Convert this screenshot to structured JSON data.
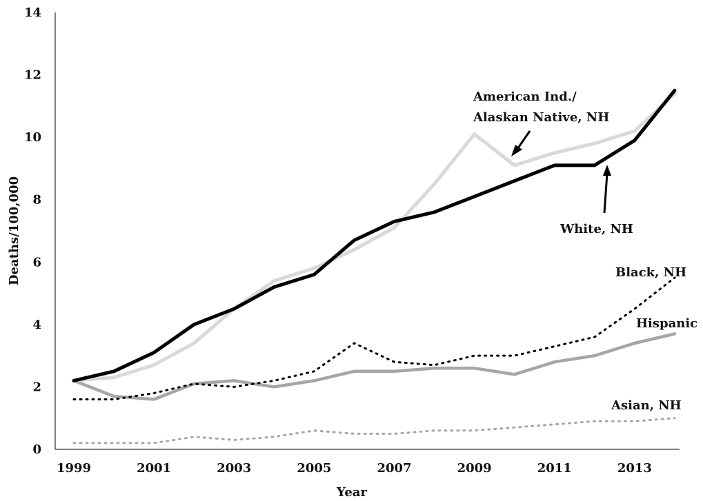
{
  "chart_data": {
    "type": "line",
    "title": "",
    "xlabel": "Year",
    "ylabel": "Deaths/100,000",
    "x": [
      1999,
      2000,
      2001,
      2002,
      2003,
      2004,
      2005,
      2006,
      2007,
      2008,
      2009,
      2010,
      2011,
      2012,
      2013,
      2014
    ],
    "x_tick_labels": [
      "1999",
      "2001",
      "2003",
      "2005",
      "2007",
      "2009",
      "2011",
      "2013"
    ],
    "y_tick_labels": [
      "0",
      "2",
      "4",
      "6",
      "8",
      "10",
      "12",
      "14"
    ],
    "xlim": [
      1999,
      2014
    ],
    "ylim": [
      0,
      14
    ],
    "grid": false,
    "legend": "none (direct labels)",
    "series": [
      {
        "name": "White, NH",
        "color": "#000000",
        "style": "solid-thick",
        "values": [
          2.2,
          2.5,
          3.1,
          4.0,
          4.5,
          5.2,
          5.6,
          6.7,
          7.3,
          7.6,
          8.1,
          8.6,
          9.1,
          9.1,
          9.9,
          11.5
        ]
      },
      {
        "name": "American Ind./ Alaskan Native, NH",
        "color": "#d9d9d9",
        "style": "solid-thick",
        "values": [
          2.2,
          2.3,
          2.7,
          3.4,
          4.5,
          5.4,
          5.8,
          6.4,
          7.1,
          8.5,
          10.1,
          9.1,
          9.5,
          9.8,
          10.2,
          11.4
        ]
      },
      {
        "name": "Black, NH",
        "color": "#000000",
        "style": "dotted",
        "values": [
          1.6,
          1.6,
          1.8,
          2.1,
          2.0,
          2.2,
          2.5,
          3.4,
          2.8,
          2.7,
          3.0,
          3.0,
          3.3,
          3.6,
          4.5,
          5.5
        ]
      },
      {
        "name": "Hispanic",
        "color": "#a6a6a6",
        "style": "solid",
        "values": [
          2.2,
          1.7,
          1.6,
          2.1,
          2.2,
          2.0,
          2.2,
          2.5,
          2.5,
          2.6,
          2.6,
          2.4,
          2.8,
          3.0,
          3.4,
          3.7
        ]
      },
      {
        "name": "Asian, NH",
        "color": "#a6a6a6",
        "style": "dotted",
        "values": [
          0.2,
          0.2,
          0.2,
          0.4,
          0.3,
          0.4,
          0.6,
          0.5,
          0.5,
          0.6,
          0.6,
          0.7,
          0.8,
          0.9,
          0.9,
          1.0
        ]
      }
    ],
    "annotations": {
      "aian_line1": "American Ind./",
      "aian_line2": "Alaskan Native, NH",
      "white": "White, NH",
      "black": "Black, NH",
      "hispanic": "Hispanic",
      "asian": "Asian, NH"
    }
  }
}
